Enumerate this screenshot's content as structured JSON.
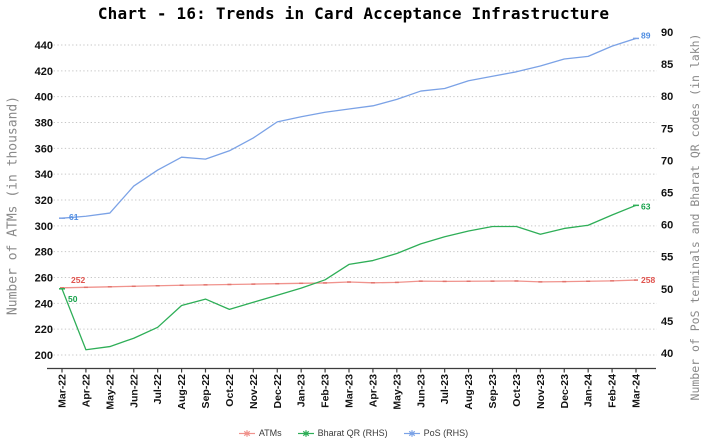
{
  "title": "Chart - 16: Trends in Card Acceptance Infrastructure",
  "left_axis": {
    "title": "Number of ATMs (in thousand)",
    "min": 200,
    "max": 440,
    "step": 20,
    "ticks": [
      "200",
      "220",
      "240",
      "260",
      "280",
      "300",
      "320",
      "340",
      "360",
      "380",
      "400",
      "420",
      "440"
    ]
  },
  "right_axis": {
    "title": "Number of PoS terminals and Bharat QR codes (in lakh)",
    "min": 40,
    "max": 90,
    "step": 5,
    "ticks": [
      "40",
      "45",
      "50",
      "55",
      "60",
      "65",
      "70",
      "75",
      "80",
      "85",
      "90"
    ]
  },
  "colors": {
    "background": "#ffffff",
    "grid": "#c6c6c6",
    "axis": "#3d3d3d",
    "title_text": "#000000",
    "axis_title_text": "#8a8a8a",
    "tick_text": "#111111",
    "legend_text": "#3a3a3a",
    "atms_line": "#f0938d",
    "atms_label": "#e0534e",
    "bharat_qr_line": "#2eae57",
    "bharat_qr_label": "#17a24b",
    "pos_line": "#7ba2e6",
    "pos_label": "#4f8de2"
  },
  "chart_data": {
    "type": "line",
    "title": "Chart - 16: Trends in Card Acceptance Infrastructure",
    "grid": "dotted-horizontal",
    "legend_position": "bottom",
    "left_ylim": [
      200,
      440
    ],
    "right_ylim": [
      40,
      90
    ],
    "categories": [
      "Mar-22",
      "Apr-22",
      "May-22",
      "Jun-22",
      "Jul-22",
      "Aug-22",
      "Sep-22",
      "Oct-22",
      "Nov-22",
      "Dec-22",
      "Jan-23",
      "Feb-23",
      "Mar-23",
      "Apr-23",
      "May-23",
      "Jun-23",
      "Jul-23",
      "Aug-23",
      "Sep-23",
      "Oct-23",
      "Nov-23",
      "Dec-23",
      "Jan-24",
      "Feb-24",
      "Mar-24"
    ],
    "series": [
      {
        "name": "ATMs",
        "axis": "left",
        "unit": "thousand",
        "color": "#f0938d",
        "marker_color": "#e2736c",
        "label_color": "#e0534e",
        "first_label": "252",
        "last_label": "258",
        "values": [
          252,
          252.4,
          252.8,
          253.2,
          253.6,
          254,
          254.3,
          254.6,
          254.9,
          255.2,
          255.5,
          255.8,
          256.5,
          255.9,
          256.2,
          257.2,
          257,
          257.1,
          257.2,
          257.3,
          256.6,
          256.8,
          257.1,
          257.4,
          258
        ]
      },
      {
        "name": "Bharat QR (RHS)",
        "axis": "right",
        "unit": "lakh",
        "color": "#2eae57",
        "marker_color": "#2eae57",
        "label_color": "#17a24b",
        "first_label": "50",
        "last_label": "63",
        "values": [
          50,
          40.5,
          41,
          42.3,
          44,
          47.4,
          48.4,
          46.8,
          47.9,
          49,
          50.1,
          51.4,
          53.8,
          54.4,
          55.5,
          57,
          58.1,
          59,
          59.7,
          59.7,
          58.5,
          59.4,
          59.9,
          61.5,
          63
        ]
      },
      {
        "name": "PoS (RHS)",
        "axis": "right",
        "unit": "lakh",
        "color": "#7ba2e6",
        "marker_color": "#7ba2e6",
        "label_color": "#4f8de2",
        "first_label": "61",
        "last_label": "89",
        "values": [
          61,
          61.3,
          61.8,
          66,
          68.5,
          70.5,
          70.2,
          71.5,
          73.5,
          76,
          76.8,
          77.5,
          78,
          78.5,
          79.5,
          80.8,
          81.2,
          82.4,
          83.1,
          83.8,
          84.7,
          85.8,
          86.2,
          87.8,
          89
        ]
      }
    ]
  }
}
